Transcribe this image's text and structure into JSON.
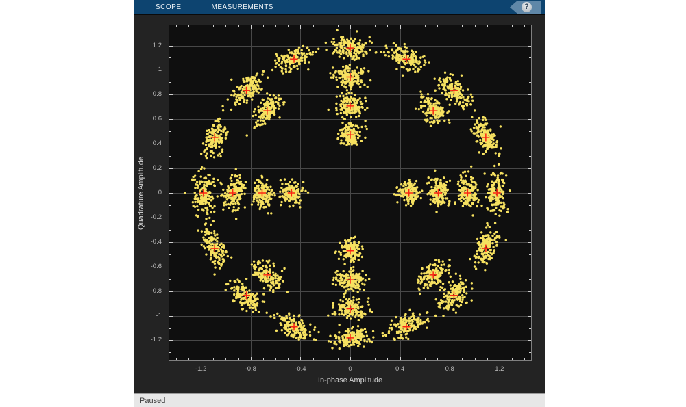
{
  "toolbar": {
    "tabs": [
      {
        "label": "SCOPE"
      },
      {
        "label": "MEASUREMENTS"
      }
    ],
    "help_label": "?"
  },
  "status_bar": {
    "text": "Paused"
  },
  "chart_data": {
    "type": "scatter",
    "title": "",
    "xlabel": "In-phase Amplitude",
    "ylabel": "Quadrature Amplitude",
    "xlim": [
      -1.46,
      1.46
    ],
    "ylim": [
      -1.37,
      1.37
    ],
    "grid": true,
    "x_ticks": {
      "values": [
        -1.2,
        -0.8,
        -0.4,
        0,
        0.4,
        0.8,
        1.2
      ],
      "labels": [
        "-1.2",
        "-0.8",
        "-0.4",
        "0",
        "0.4",
        "0.8",
        "1.2"
      ]
    },
    "y_ticks": {
      "values": [
        1.2,
        1,
        0.8,
        0.6,
        0.4,
        0.2,
        0,
        -0.2,
        -0.4,
        -0.6,
        -0.8,
        -1,
        -1.2
      ],
      "labels": [
        "1.2",
        "1",
        "0.8",
        "0.6",
        "0.4",
        "0.2",
        "0",
        "-0.2",
        "-0.4",
        "-0.6",
        "-0.8",
        "-1",
        "-1.2"
      ]
    },
    "minor_tick_step": 0.1,
    "colors": {
      "plot_bg": "#0f0f0f",
      "grid": "#484848",
      "axis_border": "#808080",
      "tick": "#cfcfcf",
      "tick_label": "#bababa",
      "axis_label": "#d2d2d2",
      "points": "#f6e160",
      "reference": "#fa2513"
    },
    "series": [
      {
        "name": "received-symbols",
        "marker": "dot"
      },
      {
        "name": "reference-constellation",
        "marker": "plus"
      }
    ],
    "reference_rings": [
      {
        "radius": 0.472,
        "angles_deg": [
          0,
          90,
          180,
          270
        ]
      },
      {
        "radius": 0.708,
        "angles_deg": [
          0,
          90,
          180,
          270
        ]
      },
      {
        "radius": 0.944,
        "angles_deg": [
          0,
          45,
          90,
          135,
          180,
          225,
          270,
          315
        ]
      },
      {
        "radius": 1.18,
        "angles_deg": [
          0,
          22.5,
          45,
          67.5,
          90,
          112.5,
          135,
          157.5,
          180,
          202.5,
          225,
          247.5,
          270,
          292.5,
          315,
          337.5
        ]
      }
    ],
    "scatter_model": {
      "points_per_cluster": 150,
      "radial_sigma": 0.042,
      "tangential_sigma_base": 0.02,
      "tangential_sigma_per_radius": 0.05,
      "point_radius_px": 1.7,
      "seed": 20
    }
  }
}
